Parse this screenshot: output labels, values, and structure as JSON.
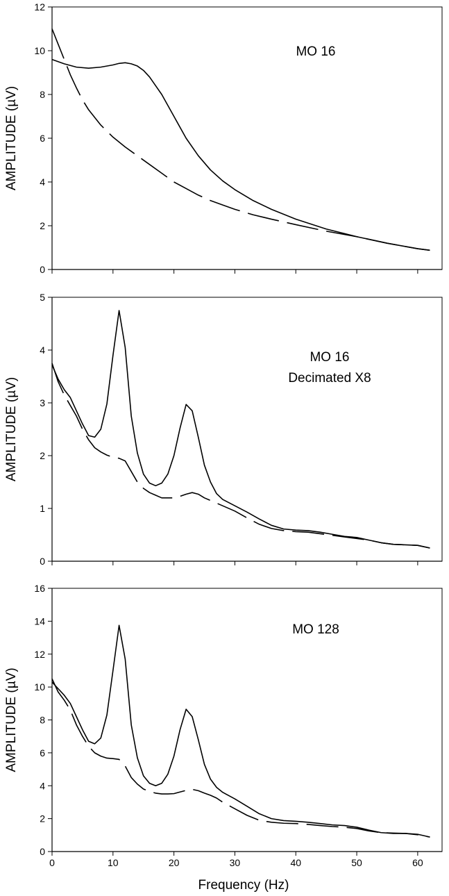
{
  "chart_data": [
    {
      "type": "line",
      "annotation": [
        "MO 16"
      ],
      "xlabel": "",
      "ylabel": "AMPLITUDE (µV)",
      "xlim": [
        0,
        64
      ],
      "ylim": [
        0,
        12
      ],
      "xticks": [
        0,
        10,
        20,
        30,
        40,
        50,
        60
      ],
      "yticks": [
        0,
        2,
        4,
        6,
        8,
        10,
        12
      ],
      "show_xtick_labels": false,
      "series": [
        {
          "style": "solid",
          "x": [
            0,
            2,
            4,
            6,
            8,
            10,
            11,
            12,
            13,
            14,
            15,
            16,
            18,
            20,
            22,
            24,
            26,
            28,
            30,
            33,
            36,
            40,
            45,
            50,
            55,
            60,
            62
          ],
          "y": [
            9.6,
            9.4,
            9.25,
            9.2,
            9.25,
            9.35,
            9.42,
            9.45,
            9.4,
            9.3,
            9.1,
            8.8,
            8.0,
            7.0,
            6.0,
            5.2,
            4.55,
            4.05,
            3.65,
            3.15,
            2.75,
            2.3,
            1.85,
            1.5,
            1.2,
            0.95,
            0.88
          ]
        },
        {
          "style": "dashed",
          "x": [
            0,
            1,
            2,
            3,
            4,
            5,
            6,
            8,
            10,
            12,
            14,
            16,
            18,
            20,
            22,
            24,
            26,
            28,
            30,
            33,
            36,
            40,
            45,
            50,
            55,
            60,
            62
          ],
          "y": [
            11.0,
            10.3,
            9.6,
            8.9,
            8.3,
            7.75,
            7.3,
            6.6,
            6.05,
            5.6,
            5.2,
            4.8,
            4.4,
            4.0,
            3.7,
            3.4,
            3.15,
            2.95,
            2.75,
            2.5,
            2.3,
            2.05,
            1.75,
            1.5,
            1.2,
            0.95,
            0.88
          ]
        }
      ]
    },
    {
      "type": "line",
      "annotation": [
        "MO 16",
        "Decimated X8"
      ],
      "xlabel": "",
      "ylabel": "AMPLITUDE (µV)",
      "xlim": [
        0,
        64
      ],
      "ylim": [
        0,
        5
      ],
      "xticks": [
        0,
        10,
        20,
        30,
        40,
        50,
        60
      ],
      "yticks": [
        0,
        1,
        2,
        3,
        4,
        5
      ],
      "show_xtick_labels": false,
      "series": [
        {
          "style": "solid",
          "x": [
            0,
            1,
            2,
            3,
            4,
            5,
            6,
            7,
            8,
            9,
            10,
            11,
            12,
            13,
            14,
            15,
            16,
            17,
            18,
            19,
            20,
            21,
            22,
            23,
            24,
            25,
            26,
            27,
            28,
            30,
            32,
            34,
            36,
            38,
            40,
            42,
            44,
            46,
            48,
            50,
            52,
            54,
            56,
            58,
            60,
            62
          ],
          "y": [
            3.72,
            3.45,
            3.25,
            3.1,
            2.85,
            2.6,
            2.38,
            2.35,
            2.5,
            2.98,
            3.9,
            4.75,
            4.05,
            2.75,
            2.05,
            1.65,
            1.48,
            1.43,
            1.48,
            1.65,
            2.0,
            2.52,
            2.97,
            2.85,
            2.35,
            1.82,
            1.5,
            1.28,
            1.17,
            1.05,
            0.93,
            0.8,
            0.68,
            0.61,
            0.59,
            0.58,
            0.55,
            0.51,
            0.47,
            0.45,
            0.4,
            0.35,
            0.32,
            0.31,
            0.3,
            0.25
          ]
        },
        {
          "style": "dashed",
          "x": [
            0,
            1,
            2,
            3,
            4,
            5,
            6,
            7,
            8,
            9,
            10,
            11,
            12,
            13,
            14,
            15,
            16,
            17,
            18,
            19,
            20,
            21,
            22,
            23,
            24,
            25,
            26,
            28,
            30,
            32,
            34,
            36,
            38,
            40,
            42,
            44,
            46,
            48,
            50,
            52,
            54,
            56,
            58,
            60,
            62
          ],
          "y": [
            3.75,
            3.4,
            3.15,
            2.95,
            2.75,
            2.5,
            2.3,
            2.15,
            2.07,
            2.01,
            1.97,
            1.95,
            1.9,
            1.7,
            1.5,
            1.38,
            1.3,
            1.25,
            1.2,
            1.2,
            1.2,
            1.23,
            1.27,
            1.3,
            1.27,
            1.2,
            1.15,
            1.05,
            0.95,
            0.82,
            0.7,
            0.62,
            0.58,
            0.56,
            0.55,
            0.52,
            0.49,
            0.46,
            0.43,
            0.4,
            0.35,
            0.32,
            0.31,
            0.3,
            0.25
          ]
        }
      ]
    },
    {
      "type": "line",
      "annotation": [
        "MO 128"
      ],
      "xlabel": "Frequency (Hz)",
      "ylabel": "AMPLITUDE (µV)",
      "xlim": [
        0,
        64
      ],
      "ylim": [
        0,
        16
      ],
      "xticks": [
        0,
        10,
        20,
        30,
        40,
        50,
        60
      ],
      "yticks": [
        0,
        2,
        4,
        6,
        8,
        10,
        12,
        14,
        16
      ],
      "show_xtick_labels": true,
      "series": [
        {
          "style": "solid",
          "x": [
            0,
            1,
            2,
            3,
            4,
            5,
            6,
            7,
            8,
            9,
            10,
            11,
            12,
            13,
            14,
            15,
            16,
            17,
            18,
            19,
            20,
            21,
            22,
            23,
            24,
            25,
            26,
            27,
            28,
            30,
            32,
            34,
            36,
            38,
            40,
            42,
            44,
            46,
            48,
            50,
            52,
            54,
            56,
            58,
            60,
            62
          ],
          "y": [
            10.3,
            9.9,
            9.5,
            9.0,
            8.2,
            7.4,
            6.7,
            6.55,
            6.9,
            8.3,
            11.0,
            13.75,
            11.7,
            7.7,
            5.7,
            4.6,
            4.15,
            4.0,
            4.15,
            4.7,
            5.8,
            7.4,
            8.65,
            8.2,
            6.8,
            5.3,
            4.4,
            3.9,
            3.6,
            3.2,
            2.75,
            2.3,
            2.0,
            1.88,
            1.84,
            1.78,
            1.7,
            1.62,
            1.58,
            1.48,
            1.3,
            1.15,
            1.1,
            1.1,
            1.05,
            0.88
          ]
        },
        {
          "style": "dashed",
          "x": [
            0,
            1,
            2,
            3,
            4,
            5,
            6,
            7,
            8,
            9,
            10,
            11,
            12,
            13,
            14,
            15,
            16,
            17,
            18,
            19,
            20,
            21,
            22,
            23,
            24,
            25,
            26,
            27,
            28,
            30,
            32,
            34,
            36,
            38,
            40,
            42,
            44,
            46,
            48,
            50,
            52,
            54,
            56,
            58,
            60,
            62
          ],
          "y": [
            10.5,
            9.7,
            9.2,
            8.6,
            7.7,
            7.0,
            6.4,
            6.0,
            5.8,
            5.68,
            5.65,
            5.6,
            5.2,
            4.5,
            4.1,
            3.8,
            3.65,
            3.55,
            3.5,
            3.5,
            3.52,
            3.62,
            3.72,
            3.78,
            3.7,
            3.55,
            3.42,
            3.25,
            3.0,
            2.6,
            2.2,
            1.9,
            1.78,
            1.72,
            1.7,
            1.65,
            1.58,
            1.52,
            1.48,
            1.4,
            1.25,
            1.15,
            1.12,
            1.1,
            1.02,
            0.88
          ]
        }
      ]
    }
  ]
}
